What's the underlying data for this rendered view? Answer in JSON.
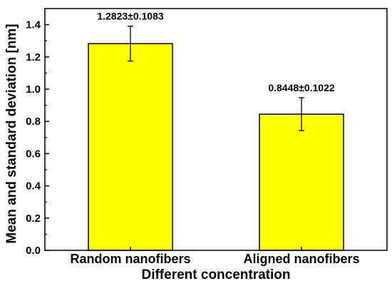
{
  "chart_data": {
    "type": "bar",
    "categories": [
      "Random nanofibers",
      "Aligned nanofibers"
    ],
    "values": [
      1.2823,
      0.8448
    ],
    "errors": [
      0.1083,
      0.1022
    ],
    "data_labels": [
      "1.2823±0.1083",
      "0.8448±0.1022"
    ],
    "xlabel": "Different concentration",
    "ylabel": "Mean and standard deviation  [nm]",
    "ylim": [
      0,
      1.5
    ],
    "yticks": [
      "0.0",
      "0.2",
      "0.4",
      "0.6",
      "0.8",
      "1.0",
      "1.2",
      "1.4"
    ],
    "grid": false,
    "colors": {
      "bar_fill": "#ffff00",
      "bar_stroke": "#000000",
      "axis": "#000000"
    }
  }
}
